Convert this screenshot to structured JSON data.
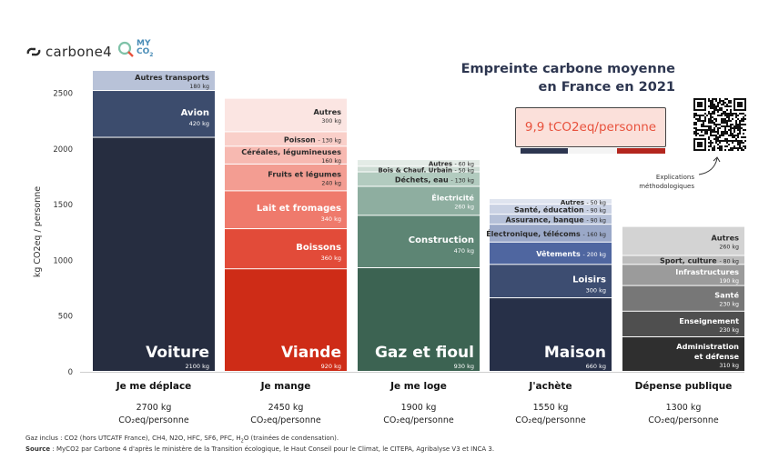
{
  "brand": {
    "carbone4": "carbone4",
    "myco2_line1": "MY",
    "myco2_line2": "CO",
    "myco2_sub": "2"
  },
  "header": {
    "title_line1": "Empreinte carbone moyenne",
    "title_line2": "en France en 2021",
    "total_label": "9,9 tCO2eq/personne",
    "explanation": "Explications méthodologiques"
  },
  "colors": {
    "flag_blue": "#2d3650",
    "flag_white": "#f4f4f4",
    "flag_red": "#b3261e",
    "accent": "#e8523d"
  },
  "footer": {
    "gases": "Gaz inclus : CO2 (hors UTCATF France), CH4, N2O, HFC, SF6, PFC, H",
    "gases_sub": "2",
    "gases_end": "O (trainées de condensation).",
    "source_label": "Source",
    "source_text": " : MyCO2 par Carbone 4 d'après le ministère de la Transition écologique, le Haut Conseil pour le Climat, le CITEPA, Agribalyse V3 et INCA 3."
  },
  "chart_data": {
    "type": "bar",
    "stacked": true,
    "ylabel": "kg CO2eq / personne",
    "ylim": [
      0,
      2700
    ],
    "yticks": [
      0,
      500,
      1000,
      1500,
      2000,
      2500
    ],
    "unit": "kg",
    "categories": [
      {
        "name": "Je me déplace",
        "total": "2700 kg",
        "total_unit": "CO₂eq/personne",
        "segments": [
          {
            "label": "Voiture",
            "value": 2100,
            "value_label": "2100 kg",
            "color": "#262d40",
            "style": "big"
          },
          {
            "label": "Avion",
            "value": 420,
            "value_label": "420 kg",
            "color": "#3c4c6d",
            "style": "mid"
          },
          {
            "label": "Autres transports",
            "value": 180,
            "value_label": "180 kg",
            "color": "#b8c2d8",
            "style": "small-dark"
          }
        ]
      },
      {
        "name": "Je mange",
        "total": "2450 kg",
        "total_unit": "CO₂eq/personne",
        "segments": [
          {
            "label": "Viande",
            "value": 920,
            "value_label": "920 kg",
            "color": "#ce2c17",
            "style": "big"
          },
          {
            "label": "Boissons",
            "value": 360,
            "value_label": "360 kg",
            "color": "#e24b39",
            "style": "mid"
          },
          {
            "label": "Lait et fromages",
            "value": 340,
            "value_label": "340 kg",
            "color": "#ef7a6c",
            "style": "mid"
          },
          {
            "label": "Fruits et légumes",
            "value": 240,
            "value_label": "240 kg",
            "color": "#f39d92",
            "style": "small"
          },
          {
            "label": "Céréales, légumineuses",
            "value": 160,
            "value_label": "160 kg",
            "color": "#f7b9b1",
            "style": "small-dark"
          },
          {
            "label": "Poisson",
            "value": 130,
            "value_label": "- 130 kg",
            "color": "#f9cfc9",
            "style": "inline"
          },
          {
            "label": "Autres",
            "value": 300,
            "value_label": "300 kg",
            "color": "#fbe5e2",
            "style": "small-dark"
          }
        ]
      },
      {
        "name": "Je me loge",
        "total": "1900 kg",
        "total_unit": "CO₂eq/personne",
        "segments": [
          {
            "label": "Gaz et fioul",
            "value": 930,
            "value_label": "930 kg",
            "color": "#3c6352",
            "style": "big"
          },
          {
            "label": "Construction",
            "value": 470,
            "value_label": "470 kg",
            "color": "#5d8574",
            "style": "mid"
          },
          {
            "label": "Électricité",
            "value": 260,
            "value_label": "260 kg",
            "color": "#8eaea0",
            "style": "small-dark"
          },
          {
            "label": "Déchets, eau",
            "value": 130,
            "value_label": "- 130 kg",
            "color": "#b2cbbf",
            "style": "inline"
          },
          {
            "label": "Bois & Chauf. Urbain",
            "value": 50,
            "value_label": "- 50 kg",
            "color": "#cddcd4",
            "style": "inline"
          },
          {
            "label": "Autres",
            "value": 60,
            "value_label": "- 60 kg",
            "color": "#e3ebe6",
            "style": "inline"
          }
        ]
      },
      {
        "name": "J'achète",
        "total": "1550 kg",
        "total_unit": "CO₂eq/personne",
        "segments": [
          {
            "label": "Maison",
            "value": 660,
            "value_label": "660 kg",
            "color": "#273048",
            "style": "big"
          },
          {
            "label": "Loisirs",
            "value": 300,
            "value_label": "300 kg",
            "color": "#3d4d71",
            "style": "mid"
          },
          {
            "label": "Vêtements",
            "value": 200,
            "value_label": "- 200 kg",
            "color": "#4f66a0",
            "style": "inline-light"
          },
          {
            "label": "Électronique, télécoms",
            "value": 160,
            "value_label": "- 160 kg",
            "color": "#9aa8c8",
            "style": "inline"
          },
          {
            "label": "Assurance, banque",
            "value": 90,
            "value_label": "- 90 kg",
            "color": "#b5c0d8",
            "style": "inline"
          },
          {
            "label": "Santé, éducation",
            "value": 90,
            "value_label": "- 90 kg",
            "color": "#cad2e4",
            "style": "inline"
          },
          {
            "label": "Autres",
            "value": 50,
            "value_label": "- 50 kg",
            "color": "#dfe4ef",
            "style": "inline"
          }
        ]
      },
      {
        "name": "Dépense publique",
        "total": "1300 kg",
        "total_unit": "CO₂eq/personne",
        "segments": [
          {
            "label": "Administration et défense",
            "value": 310,
            "value_label": "310 kg",
            "color": "#2f2f2f",
            "style": "small-two"
          },
          {
            "label": "Enseignement",
            "value": 230,
            "value_label": "230 kg",
            "color": "#4f4f4f",
            "style": "small"
          },
          {
            "label": "Santé",
            "value": 230,
            "value_label": "230 kg",
            "color": "#777777",
            "style": "small"
          },
          {
            "label": "Infrastructures",
            "value": 190,
            "value_label": "190 kg",
            "color": "#9b9b9b",
            "style": "small"
          },
          {
            "label": "Sport, culture",
            "value": 80,
            "value_label": "- 80 kg",
            "color": "#bdbdbd",
            "style": "inline"
          },
          {
            "label": "Autres",
            "value": 260,
            "value_label": "260 kg",
            "color": "#d3d3d3",
            "style": "small-dark"
          }
        ]
      }
    ]
  }
}
